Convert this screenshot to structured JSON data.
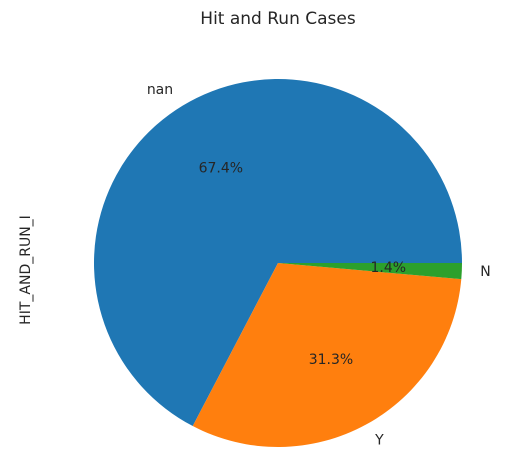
{
  "chart_data": {
    "type": "pie",
    "title": "Hit and Run Cases",
    "ylabel": "HIT_AND_RUN_I",
    "categories": [
      "nan",
      "Y",
      "N"
    ],
    "values": [
      67.4,
      31.3,
      1.4
    ],
    "value_labels": [
      "67.4%",
      "31.3%",
      "1.4%"
    ],
    "start_angle_deg": 0,
    "direction": "counterclockwise",
    "colors": [
      "#1f77b4",
      "#ff7f0e",
      "#2ca02c"
    ]
  }
}
